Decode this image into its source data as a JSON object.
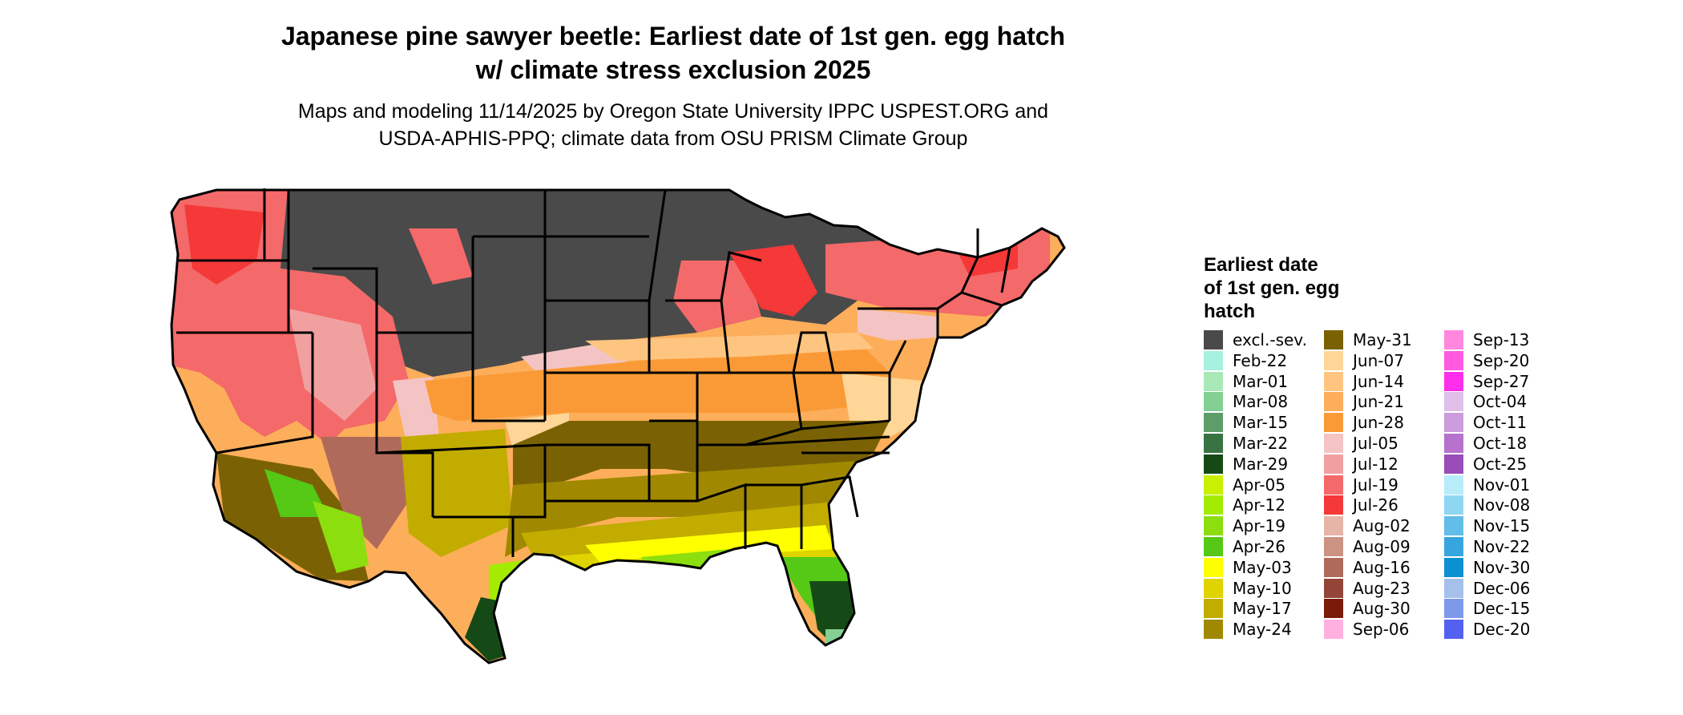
{
  "title": {
    "line1": "Japanese pine sawyer beetle: Earliest date of 1st gen. egg hatch",
    "line2": "w/ climate stress exclusion 2025"
  },
  "subtitle": {
    "line1": "Maps and modeling 11/14/2025 by Oregon State University IPPC USPEST.ORG and",
    "line2": "USDA-APHIS-PPQ; climate data from OSU PRISM Climate Group"
  },
  "legend": {
    "title_lines": [
      "Earliest date",
      "of 1st gen. egg",
      "hatch"
    ],
    "columns": [
      [
        {
          "label": "excl.-sev.",
          "color": "#4a4a4a"
        },
        {
          "label": "Feb-22",
          "color": "#a6f1e0"
        },
        {
          "label": "Mar-01",
          "color": "#a9e9b7"
        },
        {
          "label": "Mar-08",
          "color": "#84cf94"
        },
        {
          "label": "Mar-15",
          "color": "#5e9d69"
        },
        {
          "label": "Mar-22",
          "color": "#3a7343"
        },
        {
          "label": "Mar-29",
          "color": "#154a17"
        },
        {
          "label": "Apr-05",
          "color": "#c8f000"
        },
        {
          "label": "Apr-12",
          "color": "#a3eb00"
        },
        {
          "label": "Apr-19",
          "color": "#8cde0e"
        },
        {
          "label": "Apr-26",
          "color": "#55c915"
        },
        {
          "label": "May-03",
          "color": "#ffff00"
        },
        {
          "label": "May-10",
          "color": "#e0d400"
        },
        {
          "label": "May-17",
          "color": "#c2ac00"
        },
        {
          "label": "May-24",
          "color": "#a08900"
        }
      ],
      [
        {
          "label": "May-31",
          "color": "#7a6204"
        },
        {
          "label": "Jun-07",
          "color": "#fed697"
        },
        {
          "label": "Jun-14",
          "color": "#fec581"
        },
        {
          "label": "Jun-21",
          "color": "#fdae5a"
        },
        {
          "label": "Jun-28",
          "color": "#fa9a36"
        },
        {
          "label": "Jul-05",
          "color": "#f4c4c4"
        },
        {
          "label": "Jul-12",
          "color": "#f1a0a0"
        },
        {
          "label": "Jul-19",
          "color": "#f46969"
        },
        {
          "label": "Jul-26",
          "color": "#f53838"
        },
        {
          "label": "Aug-02",
          "color": "#e7b5a8"
        },
        {
          "label": "Aug-09",
          "color": "#cc9282"
        },
        {
          "label": "Aug-16",
          "color": "#b06a5a"
        },
        {
          "label": "Aug-23",
          "color": "#934637"
        },
        {
          "label": "Aug-30",
          "color": "#7a1a0a"
        },
        {
          "label": "Sep-06",
          "color": "#ffb0de"
        }
      ],
      [
        {
          "label": "Sep-13",
          "color": "#ff88de"
        },
        {
          "label": "Sep-20",
          "color": "#ff5ae0"
        },
        {
          "label": "Sep-27",
          "color": "#ff2eea"
        },
        {
          "label": "Oct-04",
          "color": "#e0c0ea"
        },
        {
          "label": "Oct-11",
          "color": "#cc9cdc"
        },
        {
          "label": "Oct-18",
          "color": "#b672cc"
        },
        {
          "label": "Oct-25",
          "color": "#9a4cb8"
        },
        {
          "label": "Nov-01",
          "color": "#b8ecfa"
        },
        {
          "label": "Nov-08",
          "color": "#8fd6f2"
        },
        {
          "label": "Nov-15",
          "color": "#62bde8"
        },
        {
          "label": "Nov-22",
          "color": "#38a6de"
        },
        {
          "label": "Nov-30",
          "color": "#0b90d2"
        },
        {
          "label": "Dec-06",
          "color": "#a6c0ec"
        },
        {
          "label": "Dec-15",
          "color": "#7e98ea"
        },
        {
          "label": "Dec-20",
          "color": "#5460f0"
        }
      ]
    ]
  }
}
